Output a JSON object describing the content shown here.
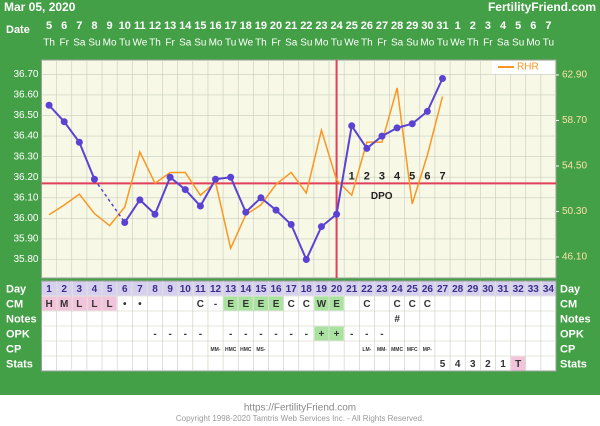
{
  "header": {
    "date": "Mar 05, 2020",
    "site": "FertilityFriend.com"
  },
  "chart_data": {
    "type": "line",
    "date_label": "Date",
    "dates": [
      5,
      6,
      7,
      8,
      9,
      10,
      11,
      12,
      13,
      14,
      15,
      16,
      17,
      18,
      19,
      20,
      21,
      22,
      23,
      24,
      25,
      26,
      27,
      28,
      29,
      30,
      31,
      1,
      2,
      3,
      4,
      5,
      6,
      7
    ],
    "weekdays": [
      "Th",
      "Fr",
      "Sa",
      "Su",
      "Mo",
      "Tu",
      "We",
      "Th",
      "Fr",
      "Sa",
      "Su",
      "Mo",
      "Tu",
      "We",
      "Th",
      "Fr",
      "Sa",
      "Su",
      "Mo",
      "Tu",
      "We",
      "Th",
      "Fr",
      "Sa",
      "Su",
      "Mo",
      "Tu",
      "We",
      "Th",
      "Fr",
      "Sa",
      "Su",
      "Mo",
      "Tu"
    ],
    "categories_label": "Day",
    "categories": [
      1,
      2,
      3,
      4,
      5,
      6,
      7,
      8,
      9,
      10,
      11,
      12,
      13,
      14,
      15,
      16,
      17,
      18,
      19,
      20,
      21,
      22,
      23,
      24,
      25,
      26,
      27,
      28,
      29,
      30,
      31,
      32,
      33,
      34
    ],
    "series": [
      {
        "color": "#5a43d3",
        "values": [
          36.55,
          36.47,
          36.37,
          36.19,
          null,
          35.98,
          36.09,
          36.02,
          36.2,
          36.14,
          36.06,
          36.19,
          36.2,
          36.03,
          36.1,
          36.04,
          35.97,
          35.8,
          35.96,
          36.02,
          36.45,
          36.34,
          36.4,
          36.44,
          36.46,
          36.52,
          36.68,
          null,
          null,
          null,
          null,
          null,
          null,
          null
        ]
      },
      {
        "name": "RHR",
        "color": "#fb9620",
        "axis": "y2",
        "values": [
          50.0,
          50.9,
          51.9,
          50.1,
          49.0,
          50.7,
          55.8,
          52.9,
          53.9,
          53.9,
          51.8,
          53.0,
          46.9,
          50.0,
          50.9,
          52.8,
          53.9,
          52.0,
          57.8,
          53.2,
          51.8,
          56.7,
          56.7,
          61.7,
          51.0,
          55.5,
          60.9,
          null,
          null,
          null,
          null,
          null,
          null,
          null
        ]
      }
    ],
    "ylim": [
      35.71,
      36.77
    ],
    "yticks": [
      {
        "value": 35.8,
        "label": "35.80"
      },
      {
        "value": 35.9,
        "label": "35.90"
      },
      {
        "value": 36.0,
        "label": "36.00"
      },
      {
        "value": 36.1,
        "label": "36.10"
      },
      {
        "value": 36.2,
        "label": "36.20"
      },
      {
        "value": 36.3,
        "label": "36.30"
      },
      {
        "value": 36.4,
        "label": "36.40"
      },
      {
        "value": 36.5,
        "label": "36.50"
      },
      {
        "value": 36.6,
        "label": "36.60"
      },
      {
        "value": 36.7,
        "label": "36.70"
      }
    ],
    "y2lim": [
      44.16,
      64.28
    ],
    "y2ticks": [
      {
        "value": 46.1,
        "label": "46.10"
      },
      {
        "value": 50.3,
        "label": "50.30"
      },
      {
        "value": 54.5,
        "label": "54.50"
      },
      {
        "value": 58.7,
        "label": "58.70"
      },
      {
        "value": 62.9,
        "label": "62.90"
      }
    ],
    "grid": true,
    "legend": "upper right",
    "coverline": 36.17,
    "ovulation_day": 20,
    "dpo": {
      "label": "DPO",
      "values": [
        null,
        null,
        null,
        null,
        null,
        null,
        null,
        null,
        null,
        null,
        null,
        null,
        null,
        null,
        null,
        null,
        null,
        null,
        null,
        null,
        1,
        2,
        3,
        4,
        5,
        6,
        7,
        null,
        null,
        null,
        null,
        null,
        null,
        null
      ]
    }
  },
  "table": {
    "rows": [
      {
        "label": "CM",
        "cells": [
          "H",
          "M",
          "L",
          "L",
          "L",
          "•",
          "•",
          null,
          null,
          null,
          "C",
          "-",
          "E",
          "E",
          "E",
          "E",
          "C",
          "C",
          "W",
          "E",
          null,
          "C",
          null,
          "C",
          "C",
          "C",
          null,
          null,
          null,
          null,
          null,
          null,
          null,
          null
        ],
        "fills": [
          "#f2c4dc",
          "#f2c4dc",
          "#f2c4dc",
          "#f2c4dc",
          "#f2c4dc",
          null,
          null,
          null,
          null,
          null,
          null,
          null,
          "#a9e39f",
          "#a9e39f",
          "#a9e39f",
          "#a9e39f",
          null,
          null,
          "#a9e39f",
          "#a9e39f",
          null,
          null,
          null,
          null,
          null,
          null,
          null,
          null,
          null,
          null,
          null,
          null,
          null,
          null
        ]
      },
      {
        "label": "Notes",
        "cells": [
          null,
          null,
          null,
          null,
          null,
          null,
          null,
          null,
          null,
          null,
          null,
          null,
          null,
          null,
          null,
          null,
          null,
          null,
          null,
          null,
          null,
          null,
          null,
          "#",
          null,
          null,
          null,
          null,
          null,
          null,
          null,
          null,
          null,
          null
        ]
      },
      {
        "label": "OPK",
        "cells": [
          null,
          null,
          null,
          null,
          null,
          null,
          null,
          "-",
          "-",
          "-",
          "-",
          null,
          "-",
          "-",
          "-",
          "-",
          "-",
          "-",
          "+",
          "+",
          "-",
          "-",
          "-",
          null,
          null,
          null,
          null,
          null,
          null,
          null,
          null,
          null,
          null,
          null
        ],
        "fills": [
          null,
          null,
          null,
          null,
          null,
          null,
          null,
          null,
          null,
          null,
          null,
          null,
          null,
          null,
          null,
          null,
          null,
          null,
          "#a9e39f",
          "#a9e39f",
          null,
          null,
          null,
          null,
          null,
          null,
          null,
          null,
          null,
          null,
          null,
          null,
          null,
          null
        ]
      },
      {
        "label": "CP",
        "small": true,
        "cells": [
          null,
          null,
          null,
          null,
          null,
          null,
          null,
          null,
          null,
          null,
          null,
          "MM-",
          "HMC",
          "HMC",
          "MS-",
          null,
          null,
          null,
          null,
          null,
          null,
          "LM-",
          "MM-",
          "MMC",
          "MFC",
          "MP-",
          null,
          null,
          null,
          null,
          null,
          null,
          null,
          null
        ]
      },
      {
        "label": "Stats",
        "cells": [
          null,
          null,
          null,
          null,
          null,
          null,
          null,
          null,
          null,
          null,
          null,
          null,
          null,
          null,
          null,
          null,
          null,
          null,
          null,
          null,
          null,
          null,
          null,
          null,
          null,
          null,
          "5",
          "4",
          "3",
          "2",
          "1",
          "T",
          null,
          null
        ],
        "fills": [
          null,
          null,
          null,
          null,
          null,
          null,
          null,
          null,
          null,
          null,
          null,
          null,
          null,
          null,
          null,
          null,
          null,
          null,
          null,
          null,
          null,
          null,
          null,
          null,
          null,
          null,
          null,
          null,
          null,
          null,
          null,
          "#f2c4dc",
          null,
          null
        ]
      }
    ]
  },
  "footer": {
    "url": "https://FertilityFriend.com",
    "copyright": "Copyright 1998-2020 Tamtris Web Services Inc. - All Rights Reserved."
  }
}
